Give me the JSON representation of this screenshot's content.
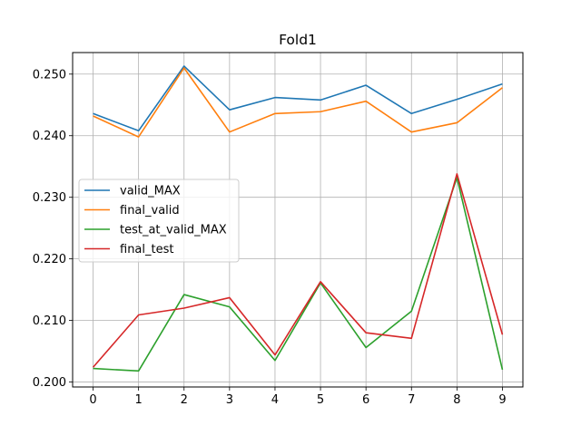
{
  "chart_data": {
    "type": "line",
    "title": "Fold1",
    "xlabel": "",
    "ylabel": "",
    "x": [
      0,
      1,
      2,
      3,
      4,
      5,
      6,
      7,
      8,
      9
    ],
    "xlim": [
      -0.45,
      9.45
    ],
    "ylim": [
      0.1992,
      0.2535
    ],
    "yticks": [
      0.2,
      0.21,
      0.22,
      0.23,
      0.24,
      0.25
    ],
    "ytick_labels": [
      "0.200",
      "0.210",
      "0.220",
      "0.230",
      "0.240",
      "0.250"
    ],
    "xtick_labels": [
      "0",
      "1",
      "2",
      "3",
      "4",
      "5",
      "6",
      "7",
      "8",
      "9"
    ],
    "grid": true,
    "legend_position": "center-left",
    "series": [
      {
        "name": "valid_MAX",
        "color": "#1f77b4",
        "values": [
          0.2436,
          0.2408,
          0.2513,
          0.2442,
          0.2462,
          0.2458,
          0.2482,
          0.2436,
          0.2459,
          0.2484
        ]
      },
      {
        "name": "final_valid",
        "color": "#ff7f0e",
        "values": [
          0.2432,
          0.2398,
          0.251,
          0.2406,
          0.2436,
          0.2439,
          0.2456,
          0.2406,
          0.2421,
          0.2478
        ]
      },
      {
        "name": "test_at_valid_MAX",
        "color": "#2ca02c",
        "values": [
          0.2022,
          0.2018,
          0.2142,
          0.2122,
          0.2035,
          0.2161,
          0.2056,
          0.2115,
          0.2332,
          0.202
        ]
      },
      {
        "name": "final_test",
        "color": "#d62728",
        "values": [
          0.2024,
          0.2109,
          0.212,
          0.2137,
          0.2044,
          0.2163,
          0.208,
          0.2071,
          0.2338,
          0.2077
        ]
      }
    ]
  }
}
